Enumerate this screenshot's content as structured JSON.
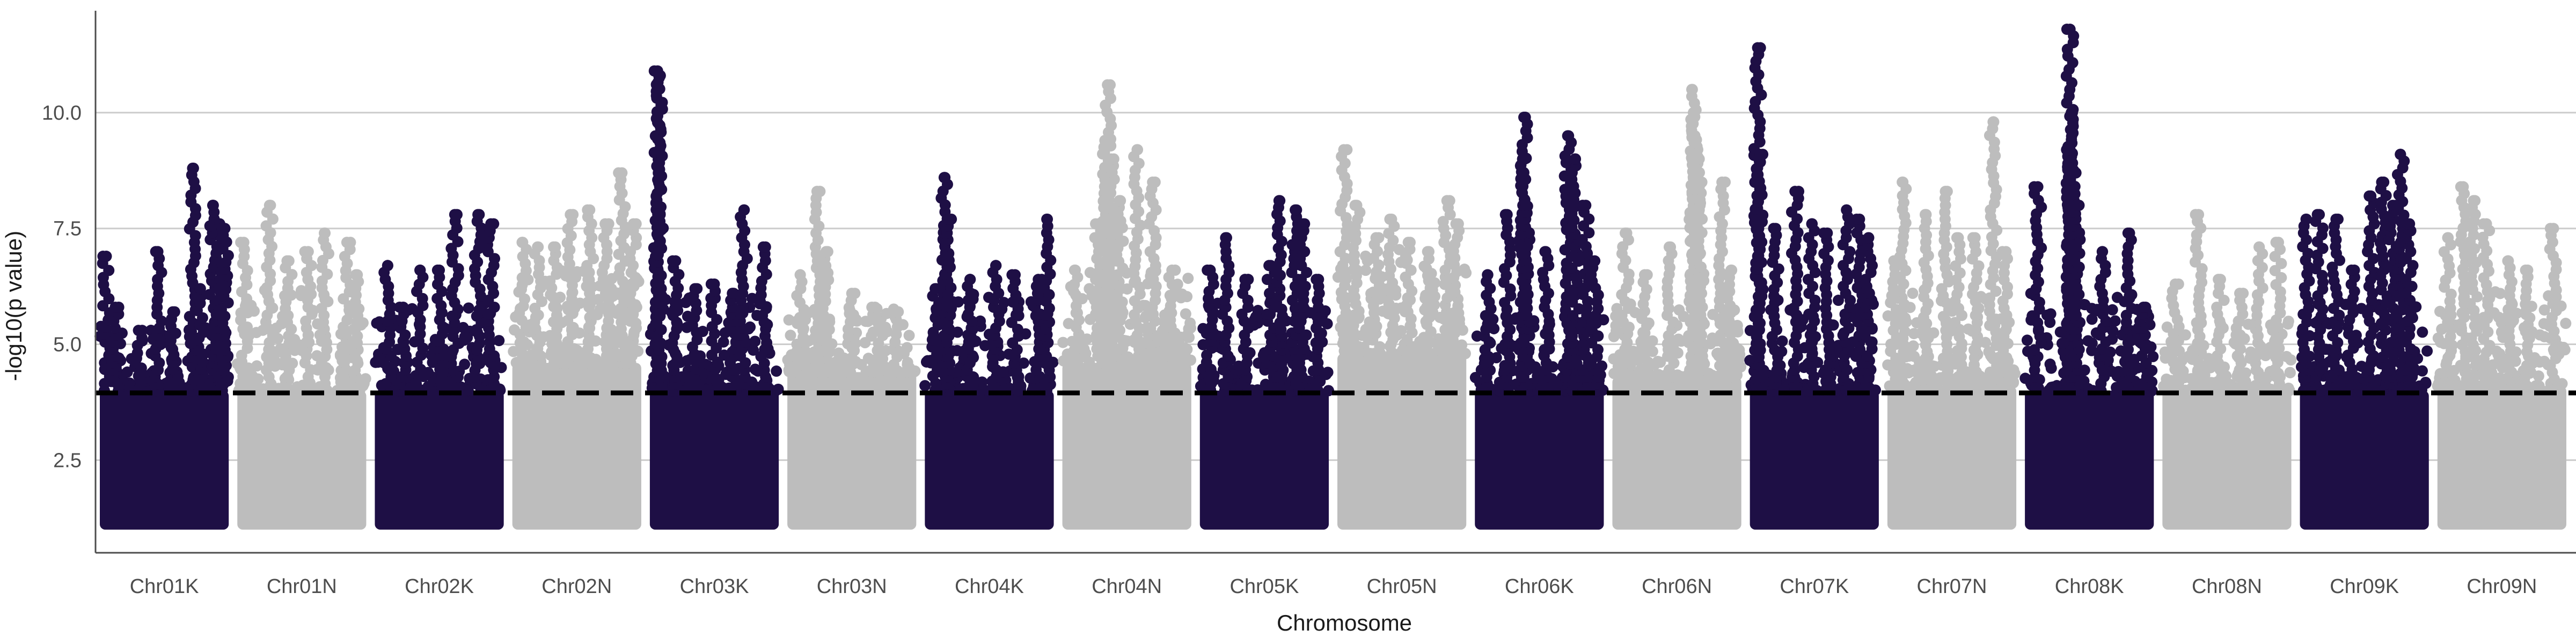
{
  "chart_data": {
    "type": "scatter",
    "subtype": "manhattan",
    "title": "",
    "xlabel": "Chromosome",
    "ylabel": "-log10(p value)",
    "ylim": [
      0.5,
      12.2
    ],
    "yticks": [
      2.5,
      5.0,
      7.5,
      10.0
    ],
    "ytick_labels": [
      "2.5",
      "5.0",
      "7.5",
      "10.0"
    ],
    "grid": "horizontal-major",
    "threshold": 3.95,
    "colors": {
      "dark": "#1e0f45",
      "light": "#bdbdbd",
      "threshold": "#000000",
      "grid": "#cccccc",
      "axis": "#4d4d4d"
    },
    "chromosomes": [
      {
        "name": "Chr01K",
        "color": "dark",
        "band_top": 4.8,
        "body_top": 4.0,
        "peaks": [
          [
            0.05,
            6.9
          ],
          [
            0.12,
            5.8
          ],
          [
            0.3,
            5.3
          ],
          [
            0.45,
            7.0
          ],
          [
            0.58,
            5.7
          ],
          [
            0.72,
            8.8
          ],
          [
            0.78,
            6.2
          ],
          [
            0.88,
            8.0
          ],
          [
            0.93,
            7.6
          ],
          [
            0.97,
            7.5
          ]
        ]
      },
      {
        "name": "Chr01N",
        "color": "light",
        "band_top": 5.6,
        "body_top": 4.0,
        "peaks": [
          [
            0.05,
            7.2
          ],
          [
            0.25,
            8.0
          ],
          [
            0.4,
            6.8
          ],
          [
            0.55,
            7.0
          ],
          [
            0.68,
            7.4
          ],
          [
            0.85,
            7.2
          ],
          [
            0.92,
            6.5
          ]
        ]
      },
      {
        "name": "Chr02K",
        "color": "dark",
        "band_top": 5.3,
        "body_top": 4.0,
        "peaks": [
          [
            0.1,
            6.7
          ],
          [
            0.22,
            5.8
          ],
          [
            0.35,
            6.6
          ],
          [
            0.5,
            6.6
          ],
          [
            0.62,
            7.8
          ],
          [
            0.8,
            7.8
          ],
          [
            0.9,
            7.6
          ]
        ]
      },
      {
        "name": "Chr02N",
        "color": "light",
        "band_top": 6.0,
        "body_top": 4.6,
        "peaks": [
          [
            0.08,
            7.2
          ],
          [
            0.2,
            7.1
          ],
          [
            0.32,
            7.1
          ],
          [
            0.45,
            7.8
          ],
          [
            0.6,
            7.9
          ],
          [
            0.72,
            7.6
          ],
          [
            0.85,
            8.7
          ],
          [
            0.94,
            7.6
          ]
        ]
      },
      {
        "name": "Chr03K",
        "color": "dark",
        "band_top": 5.4,
        "body_top": 4.0,
        "peaks": [
          [
            0.06,
            10.9
          ],
          [
            0.07,
            10.8
          ],
          [
            0.08,
            7.8
          ],
          [
            0.2,
            6.8
          ],
          [
            0.35,
            6.2
          ],
          [
            0.5,
            6.3
          ],
          [
            0.65,
            6.1
          ],
          [
            0.73,
            7.9
          ],
          [
            0.88,
            7.1
          ]
        ]
      },
      {
        "name": "Chr03N",
        "color": "light",
        "band_top": 5.2,
        "body_top": 4.4,
        "peaks": [
          [
            0.1,
            6.5
          ],
          [
            0.23,
            8.3
          ],
          [
            0.3,
            7.0
          ],
          [
            0.5,
            6.1
          ],
          [
            0.68,
            5.8
          ],
          [
            0.85,
            5.7
          ]
        ]
      },
      {
        "name": "Chr04K",
        "color": "dark",
        "band_top": 5.5,
        "body_top": 4.0,
        "peaks": [
          [
            0.08,
            6.2
          ],
          [
            0.15,
            8.6
          ],
          [
            0.18,
            7.7
          ],
          [
            0.35,
            6.4
          ],
          [
            0.55,
            6.7
          ],
          [
            0.7,
            6.5
          ],
          [
            0.88,
            6.4
          ],
          [
            0.95,
            7.7
          ]
        ]
      },
      {
        "name": "Chr04N",
        "color": "light",
        "band_top": 6.0,
        "body_top": 4.6,
        "peaks": [
          [
            0.1,
            6.6
          ],
          [
            0.28,
            7.6
          ],
          [
            0.35,
            10.6
          ],
          [
            0.33,
            9.4
          ],
          [
            0.38,
            9.0
          ],
          [
            0.45,
            8.1
          ],
          [
            0.58,
            9.2
          ],
          [
            0.7,
            8.5
          ],
          [
            0.85,
            6.6
          ]
        ]
      },
      {
        "name": "Chr05K",
        "color": "dark",
        "band_top": 5.3,
        "body_top": 4.0,
        "peaks": [
          [
            0.08,
            6.6
          ],
          [
            0.2,
            7.3
          ],
          [
            0.35,
            6.4
          ],
          [
            0.55,
            6.7
          ],
          [
            0.62,
            8.1
          ],
          [
            0.74,
            7.9
          ],
          [
            0.8,
            7.6
          ],
          [
            0.92,
            6.4
          ]
        ]
      },
      {
        "name": "Chr05N",
        "color": "light",
        "band_top": 6.5,
        "body_top": 4.8,
        "peaks": [
          [
            0.05,
            9.2
          ],
          [
            0.15,
            8.0
          ],
          [
            0.3,
            7.3
          ],
          [
            0.42,
            7.7
          ],
          [
            0.55,
            7.2
          ],
          [
            0.7,
            7.0
          ],
          [
            0.85,
            8.1
          ],
          [
            0.92,
            7.6
          ]
        ]
      },
      {
        "name": "Chr06K",
        "color": "dark",
        "band_top": 5.0,
        "body_top": 4.0,
        "peaks": [
          [
            0.1,
            6.5
          ],
          [
            0.25,
            7.8
          ],
          [
            0.38,
            9.9
          ],
          [
            0.37,
            9.0
          ],
          [
            0.4,
            8.0
          ],
          [
            0.55,
            7.0
          ],
          [
            0.72,
            9.5
          ],
          [
            0.78,
            9.0
          ],
          [
            0.86,
            8.0
          ],
          [
            0.93,
            6.8
          ]
        ]
      },
      {
        "name": "Chr06N",
        "color": "light",
        "band_top": 5.3,
        "body_top": 4.3,
        "peaks": [
          [
            0.1,
            7.4
          ],
          [
            0.25,
            6.5
          ],
          [
            0.45,
            7.1
          ],
          [
            0.62,
            10.5
          ],
          [
            0.63,
            10.0
          ],
          [
            0.64,
            9.5
          ],
          [
            0.66,
            9.0
          ],
          [
            0.67,
            8.5
          ],
          [
            0.68,
            8.0
          ],
          [
            0.85,
            8.5
          ],
          [
            0.92,
            6.6
          ]
        ]
      },
      {
        "name": "Chr07K",
        "color": "dark",
        "band_top": 5.4,
        "body_top": 4.0,
        "peaks": [
          [
            0.06,
            11.4
          ],
          [
            0.08,
            9.1
          ],
          [
            0.2,
            7.5
          ],
          [
            0.35,
            8.3
          ],
          [
            0.48,
            7.6
          ],
          [
            0.6,
            7.4
          ],
          [
            0.75,
            7.9
          ],
          [
            0.85,
            7.7
          ],
          [
            0.92,
            7.3
          ]
        ]
      },
      {
        "name": "Chr07N",
        "color": "light",
        "band_top": 5.6,
        "body_top": 4.1,
        "peaks": [
          [
            0.05,
            6.8
          ],
          [
            0.12,
            8.5
          ],
          [
            0.3,
            7.8
          ],
          [
            0.45,
            8.3
          ],
          [
            0.55,
            7.3
          ],
          [
            0.68,
            7.3
          ],
          [
            0.82,
            9.8
          ],
          [
            0.92,
            7.0
          ]
        ]
      },
      {
        "name": "Chr08K",
        "color": "dark",
        "band_top": 5.5,
        "body_top": 4.0,
        "peaks": [
          [
            0.1,
            8.4
          ],
          [
            0.35,
            11.8
          ],
          [
            0.36,
            10.0
          ],
          [
            0.35,
            9.2
          ],
          [
            0.37,
            8.7
          ],
          [
            0.4,
            8.0
          ],
          [
            0.6,
            7.0
          ],
          [
            0.8,
            7.4
          ],
          [
            0.92,
            5.8
          ]
        ]
      },
      {
        "name": "Chr08N",
        "color": "light",
        "band_top": 4.9,
        "body_top": 4.0,
        "peaks": [
          [
            0.1,
            6.3
          ],
          [
            0.28,
            7.8
          ],
          [
            0.45,
            6.4
          ],
          [
            0.6,
            6.1
          ],
          [
            0.75,
            7.1
          ],
          [
            0.9,
            7.2
          ]
        ]
      },
      {
        "name": "Chr09K",
        "color": "dark",
        "band_top": 5.3,
        "body_top": 4.0,
        "peaks": [
          [
            0.05,
            7.7
          ],
          [
            0.15,
            7.8
          ],
          [
            0.28,
            7.7
          ],
          [
            0.4,
            6.6
          ],
          [
            0.55,
            8.2
          ],
          [
            0.65,
            8.5
          ],
          [
            0.72,
            8.0
          ],
          [
            0.78,
            9.1
          ],
          [
            0.85,
            7.6
          ]
        ]
      },
      {
        "name": "Chr09N",
        "color": "light",
        "band_top": 5.6,
        "body_top": 4.1,
        "peaks": [
          [
            0.08,
            7.3
          ],
          [
            0.2,
            8.4
          ],
          [
            0.28,
            8.1
          ],
          [
            0.38,
            7.6
          ],
          [
            0.55,
            6.8
          ],
          [
            0.7,
            6.6
          ],
          [
            0.9,
            7.5
          ]
        ]
      }
    ]
  }
}
